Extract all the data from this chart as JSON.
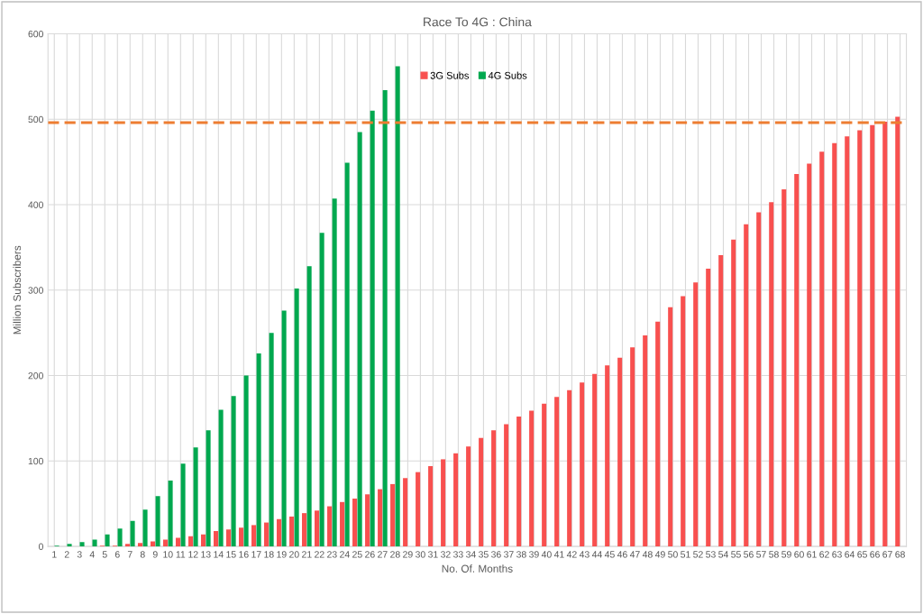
{
  "chart_data": {
    "type": "bar",
    "title": "Race To 4G : China",
    "xlabel": "No. Of. Months",
    "ylabel": "Million Subscribers",
    "categories": [
      "1",
      "2",
      "3",
      "4",
      "5",
      "6",
      "7",
      "8",
      "9",
      "10",
      "11",
      "12",
      "13",
      "14",
      "15",
      "16",
      "17",
      "18",
      "19",
      "20",
      "21",
      "22",
      "23",
      "24",
      "25",
      "26",
      "27",
      "28",
      "29",
      "30",
      "31",
      "32",
      "33",
      "34",
      "35",
      "36",
      "37",
      "38",
      "39",
      "40",
      "41",
      "42",
      "43",
      "44",
      "45",
      "46",
      "47",
      "48",
      "49",
      "50",
      "51",
      "52",
      "53",
      "54",
      "55",
      "56",
      "57",
      "58",
      "59",
      "60",
      "61",
      "62",
      "63",
      "64",
      "65",
      "66",
      "67",
      "68"
    ],
    "series": [
      {
        "name": "3G Subs",
        "color": "#f8504f",
        "values": [
          0,
          0,
          0,
          0,
          1,
          1,
          3,
          4,
          6,
          8,
          10,
          12,
          14,
          18,
          20,
          22,
          25,
          28,
          32,
          35,
          39,
          42,
          47,
          52,
          56,
          61,
          67,
          73,
          80,
          87,
          94,
          102,
          109,
          117,
          127,
          136,
          143,
          152,
          159,
          167,
          175,
          183,
          192,
          202,
          212,
          221,
          233,
          247,
          263,
          280,
          293,
          309,
          325,
          341,
          359,
          377,
          391,
          403,
          418,
          436,
          448,
          462,
          472,
          480,
          487,
          493,
          497,
          503
        ]
      },
      {
        "name": "4G Subs",
        "color": "#00a84f",
        "values": [
          1,
          3,
          5,
          8,
          14,
          21,
          30,
          43,
          59,
          77,
          97,
          116,
          136,
          160,
          176,
          200,
          226,
          250,
          276,
          302,
          328,
          367,
          407,
          449,
          485,
          510,
          534,
          562,
          null,
          null,
          null,
          null,
          null,
          null,
          null,
          null,
          null,
          null,
          null,
          null,
          null,
          null,
          null,
          null,
          null,
          null,
          null,
          null,
          null,
          null,
          null,
          null,
          null,
          null,
          null,
          null,
          null,
          null,
          null,
          null,
          null,
          null,
          null,
          null,
          null,
          null,
          null,
          null
        ]
      }
    ],
    "ylim": [
      0,
      600
    ],
    "yticks": [
      0,
      100,
      200,
      300,
      400,
      500,
      600
    ],
    "grid": true,
    "legend": "top left",
    "ref_lines": [
      {
        "axis": "y",
        "value": 496,
        "color": "#ed7d31",
        "line_style": "dashed"
      }
    ]
  }
}
